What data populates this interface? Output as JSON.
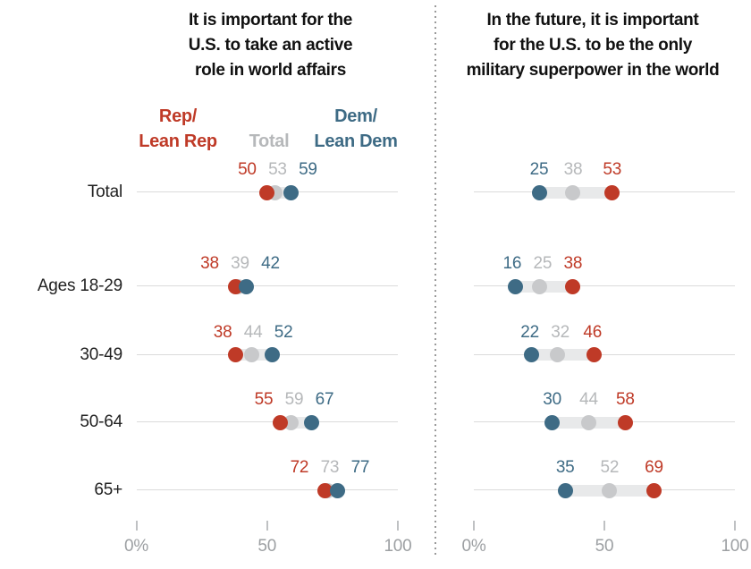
{
  "chart_data": {
    "type": "dot-plot",
    "description": "Two-panel dumbbell dot plot comparing Rep/Lean Rep, Total, and Dem/Lean Dem percentages by age group",
    "categories": [
      "Total",
      "Ages 18-29",
      "30-49",
      "50-64",
      "65+"
    ],
    "xlim": [
      0,
      100
    ],
    "axis": {
      "values": [
        0,
        50,
        100
      ],
      "labels": [
        "0%",
        "50",
        "100"
      ]
    },
    "legend": {
      "rep_lines": [
        "Rep/",
        "Lean Rep"
      ],
      "total_label": "Total",
      "dem_lines": [
        "Dem/",
        "Lean Dem"
      ]
    },
    "panels": [
      {
        "title_lines": [
          "It is important for the",
          "U.S. to take an active",
          "role in world affairs"
        ],
        "series": [
          {
            "name": "Rep/Lean Rep",
            "color_key": "rep",
            "values": [
              50,
              38,
              38,
              55,
              72
            ]
          },
          {
            "name": "Total",
            "color_key": "total",
            "values": [
              53,
              39,
              44,
              59,
              73
            ]
          },
          {
            "name": "Dem/Lean Dem",
            "color_key": "dem",
            "values": [
              59,
              42,
              52,
              67,
              77
            ]
          }
        ]
      },
      {
        "title_lines": [
          "In the future, it is important",
          "for the U.S. to be the only",
          "military superpower in the world"
        ],
        "series": [
          {
            "name": "Rep/Lean Rep",
            "color_key": "rep",
            "values": [
              53,
              38,
              46,
              58,
              69
            ]
          },
          {
            "name": "Total",
            "color_key": "total",
            "values": [
              38,
              25,
              32,
              44,
              52
            ]
          },
          {
            "name": "Dem/Lean Dem",
            "color_key": "dem",
            "values": [
              25,
              16,
              22,
              30,
              35
            ]
          }
        ]
      }
    ],
    "colors": {
      "rep": "#bf3a27",
      "dem": "#3e6b85",
      "total_dot": "#c8c9cb",
      "total_text": "#b6b8ba",
      "band": "#e8e9ea",
      "row_line": "#dbdbdb",
      "tick": "#bfc1c3",
      "axis_text": "#9da0a3",
      "title": "#111111",
      "category": "#222222",
      "divider": "#9a9a9a"
    }
  }
}
